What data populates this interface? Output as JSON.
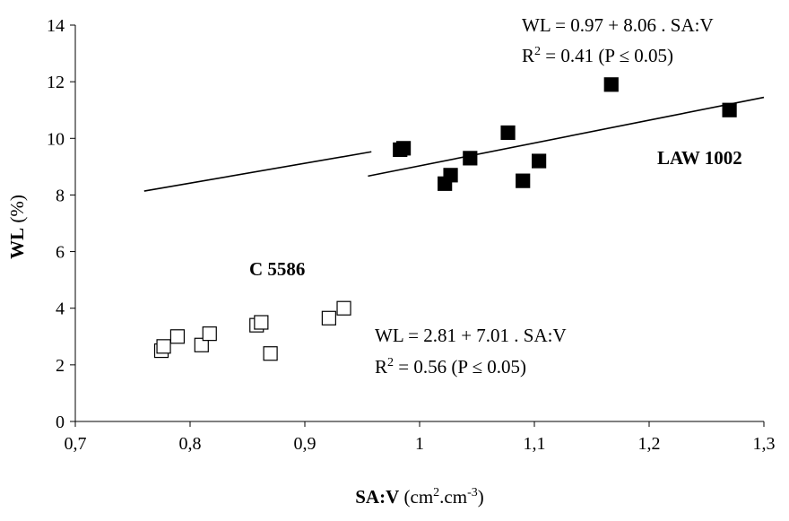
{
  "chart_data": {
    "type": "scatter",
    "xlabel_bold": "SA:V",
    "xlabel_unit_pre": " (cm",
    "xlabel_unit_sup1": "2",
    "xlabel_unit_mid": ".cm",
    "xlabel_unit_sup2": "-3",
    "xlabel_unit_post": ")",
    "ylabel_bold": "WL",
    "ylabel_unit": " (%)",
    "xlim": [
      0.7,
      1.3
    ],
    "ylim": [
      0,
      14
    ],
    "x_ticks": [
      "0,7",
      "0,8",
      "0,9",
      "1",
      "1,1",
      "1,2",
      "1,3"
    ],
    "y_ticks": [
      "0",
      "2",
      "4",
      "6",
      "8",
      "10",
      "12",
      "14"
    ],
    "grid": false,
    "series": [
      {
        "name": "LAW 1002",
        "marker": "filled-square",
        "color": "#000000",
        "points": [
          {
            "x": 0.983,
            "y": 9.6
          },
          {
            "x": 0.986,
            "y": 9.65
          },
          {
            "x": 1.022,
            "y": 8.4
          },
          {
            "x": 1.027,
            "y": 8.7
          },
          {
            "x": 1.044,
            "y": 9.3
          },
          {
            "x": 1.077,
            "y": 10.2
          },
          {
            "x": 1.09,
            "y": 8.5
          },
          {
            "x": 1.104,
            "y": 9.2
          },
          {
            "x": 1.167,
            "y": 11.9
          },
          {
            "x": 1.27,
            "y": 11.0
          }
        ],
        "fit": {
          "intercept": 0.97,
          "slope": 8.06,
          "x_range": [
            0.955,
            1.3
          ]
        },
        "equation": "WL = 0.97 + 8.06 . SA:V",
        "r2_pre": "R",
        "r2_sup": "2",
        "r2_post": " = 0.41  (P ≤ 0.05)"
      },
      {
        "name": "C 5586",
        "marker": "open-square",
        "color": "#000000",
        "points": [
          {
            "x": 0.775,
            "y": 2.5
          },
          {
            "x": 0.777,
            "y": 2.65
          },
          {
            "x": 0.789,
            "y": 3.0
          },
          {
            "x": 0.81,
            "y": 2.7
          },
          {
            "x": 0.817,
            "y": 3.1
          },
          {
            "x": 0.858,
            "y": 3.4
          },
          {
            "x": 0.862,
            "y": 3.5
          },
          {
            "x": 0.87,
            "y": 2.4
          },
          {
            "x": 0.921,
            "y": 3.65
          },
          {
            "x": 0.934,
            "y": 4.0
          }
        ],
        "fit": {
          "intercept": 2.81,
          "slope": 7.01,
          "x_range": [
            0.76,
            0.958
          ]
        },
        "equation": "WL = 2.81 + 7.01 . SA:V",
        "r2_pre": "R",
        "r2_sup": "2",
        "r2_post": " = 0.56   (P ≤  0.05)"
      }
    ]
  }
}
